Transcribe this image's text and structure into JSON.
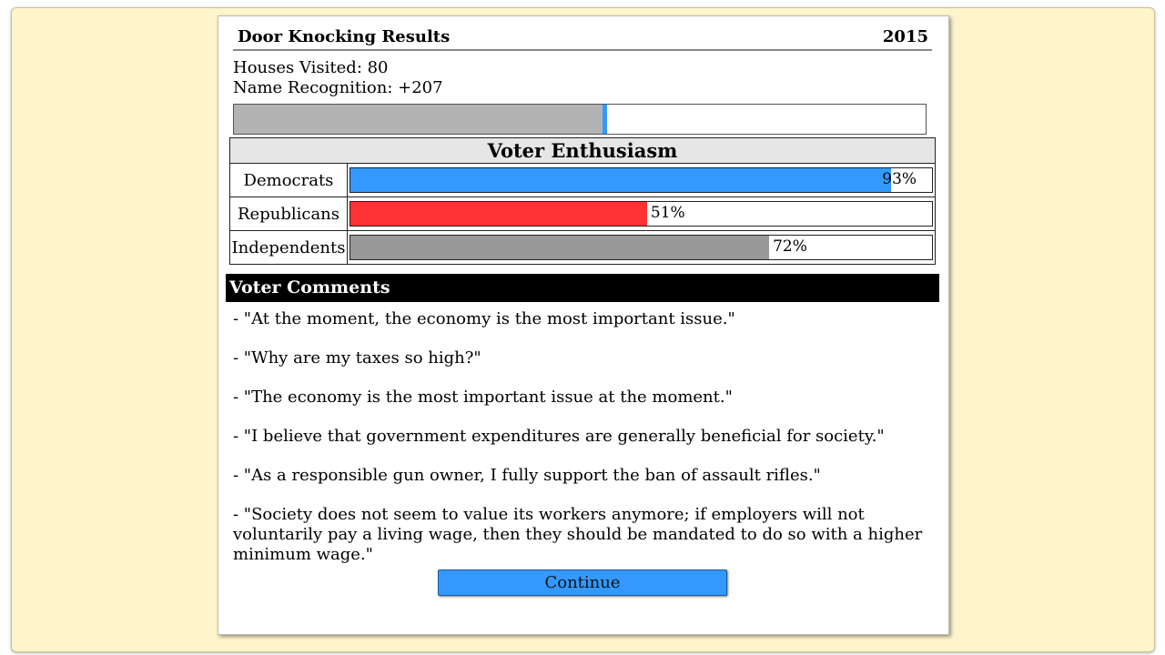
{
  "header": {
    "title": "Door Knocking Results",
    "year": "2015"
  },
  "stats": {
    "houses_visited": "Houses Visited: 80",
    "name_recognition": "Name Recognition: +207"
  },
  "progress": {
    "fraction": 0.54,
    "fill_color": "#b3b3b3",
    "marker_color": "#3399ff"
  },
  "enthusiasm": {
    "title": "Voter Enthusiasm",
    "rows": [
      {
        "label": "Democrats",
        "value": 93,
        "value_label": "93%",
        "color": "#3399ff"
      },
      {
        "label": "Republicans",
        "value": 51,
        "value_label": "51%",
        "color": "#ff3333"
      },
      {
        "label": "Independents",
        "value": 72,
        "value_label": "72%",
        "color": "#999999"
      }
    ]
  },
  "comments": {
    "title": "Voter Comments",
    "items": [
      "- \"At the moment, the economy is the most important issue.\"",
      "- \"Why are my taxes so high?\"",
      "- \"The economy is the most important issue at the moment.\"",
      "- \"I believe that government expenditures are generally beneficial for society.\"",
      "- \"As a responsible gun owner, I fully support the ban of assault rifles.\"",
      "- \"Society does not seem to value its workers anymore; if employers will not voluntarily pay a living wage, then they should be mandated to do so with a higher minimum wage.\""
    ]
  },
  "continue_label": "Continue"
}
